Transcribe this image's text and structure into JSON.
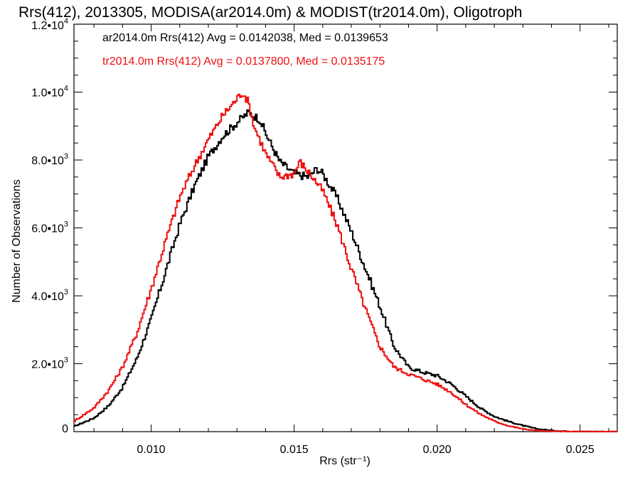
{
  "chart_data": {
    "type": "histogram",
    "title": "Rrs(412), 2013305, MODISA(ar2014.0m) & MODIST(tr2014.0m), Oligotroph",
    "xlabel": "Rrs (str⁻¹)",
    "ylabel": "Number of Observations",
    "xlim": [
      0.0073,
      0.0263
    ],
    "ylim": [
      0,
      12000
    ],
    "x_ticks": [
      0.01,
      0.015,
      0.02,
      0.025
    ],
    "x_tick_labels": [
      "0.010",
      "0.015",
      "0.020",
      "0.025"
    ],
    "y_ticks": [
      {
        "value": 0,
        "mantissa": "0",
        "exp": ""
      },
      {
        "value": 2000,
        "mantissa": "2.0•10",
        "exp": "3"
      },
      {
        "value": 4000,
        "mantissa": "4.0•10",
        "exp": "3"
      },
      {
        "value": 6000,
        "mantissa": "6.0•10",
        "exp": "3"
      },
      {
        "value": 8000,
        "mantissa": "8.0•10",
        "exp": "3"
      },
      {
        "value": 10000,
        "mantissa": "1.0•10",
        "exp": "4"
      },
      {
        "value": 12000,
        "mantissa": "1.2•10",
        "exp": "4"
      }
    ],
    "legend": [
      {
        "text": "ar2014.0m Rrs(412) Avg = 0.0142038, Med = 0.0139653",
        "color": "#000000"
      },
      {
        "text": "tr2014.0m Rrs(412) Avg = 0.0137800, Med = 0.0135175",
        "color": "#ee1111"
      }
    ],
    "series": [
      {
        "color": "#000000",
        "points": [
          [
            0.0073,
            150
          ],
          [
            0.008,
            400
          ],
          [
            0.0085,
            750
          ],
          [
            0.009,
            1300
          ],
          [
            0.0095,
            2150
          ],
          [
            0.01,
            3300
          ],
          [
            0.0105,
            4700
          ],
          [
            0.011,
            6100
          ],
          [
            0.0115,
            7200
          ],
          [
            0.012,
            8100
          ],
          [
            0.0125,
            8700
          ],
          [
            0.013,
            9100
          ],
          [
            0.0134,
            9400
          ],
          [
            0.0138,
            9200
          ],
          [
            0.014,
            8800
          ],
          [
            0.0142,
            8450
          ],
          [
            0.0145,
            7950
          ],
          [
            0.015,
            7600
          ],
          [
            0.0155,
            7500
          ],
          [
            0.0158,
            7750
          ],
          [
            0.016,
            7600
          ],
          [
            0.0165,
            6900
          ],
          [
            0.017,
            5900
          ],
          [
            0.0175,
            4800
          ],
          [
            0.018,
            3700
          ],
          [
            0.0185,
            2500
          ],
          [
            0.019,
            1900
          ],
          [
            0.0195,
            1750
          ],
          [
            0.02,
            1650
          ],
          [
            0.0205,
            1400
          ],
          [
            0.021,
            1050
          ],
          [
            0.0215,
            700
          ],
          [
            0.022,
            450
          ],
          [
            0.0225,
            300
          ],
          [
            0.023,
            180
          ],
          [
            0.0235,
            80
          ],
          [
            0.024,
            35
          ],
          [
            0.0245,
            12
          ],
          [
            0.025,
            4
          ],
          [
            0.0263,
            0
          ]
        ]
      },
      {
        "color": "#ee1111",
        "points": [
          [
            0.0073,
            300
          ],
          [
            0.008,
            700
          ],
          [
            0.0085,
            1200
          ],
          [
            0.009,
            1900
          ],
          [
            0.0095,
            2900
          ],
          [
            0.01,
            4200
          ],
          [
            0.0105,
            5600
          ],
          [
            0.011,
            6900
          ],
          [
            0.0115,
            7800
          ],
          [
            0.012,
            8600
          ],
          [
            0.0125,
            9300
          ],
          [
            0.013,
            9800
          ],
          [
            0.0132,
            10000
          ],
          [
            0.0134,
            9700
          ],
          [
            0.0136,
            9000
          ],
          [
            0.014,
            8200
          ],
          [
            0.0145,
            7500
          ],
          [
            0.015,
            7600
          ],
          [
            0.0152,
            7950
          ],
          [
            0.0155,
            7650
          ],
          [
            0.016,
            7100
          ],
          [
            0.0165,
            6100
          ],
          [
            0.017,
            4800
          ],
          [
            0.0175,
            3600
          ],
          [
            0.018,
            2500
          ],
          [
            0.0185,
            1900
          ],
          [
            0.019,
            1700
          ],
          [
            0.0195,
            1550
          ],
          [
            0.02,
            1400
          ],
          [
            0.0205,
            1150
          ],
          [
            0.021,
            800
          ],
          [
            0.0215,
            520
          ],
          [
            0.022,
            310
          ],
          [
            0.0225,
            170
          ],
          [
            0.023,
            80
          ],
          [
            0.0235,
            30
          ],
          [
            0.024,
            12
          ],
          [
            0.0245,
            4
          ],
          [
            0.025,
            1
          ],
          [
            0.0263,
            0
          ]
        ]
      }
    ]
  }
}
